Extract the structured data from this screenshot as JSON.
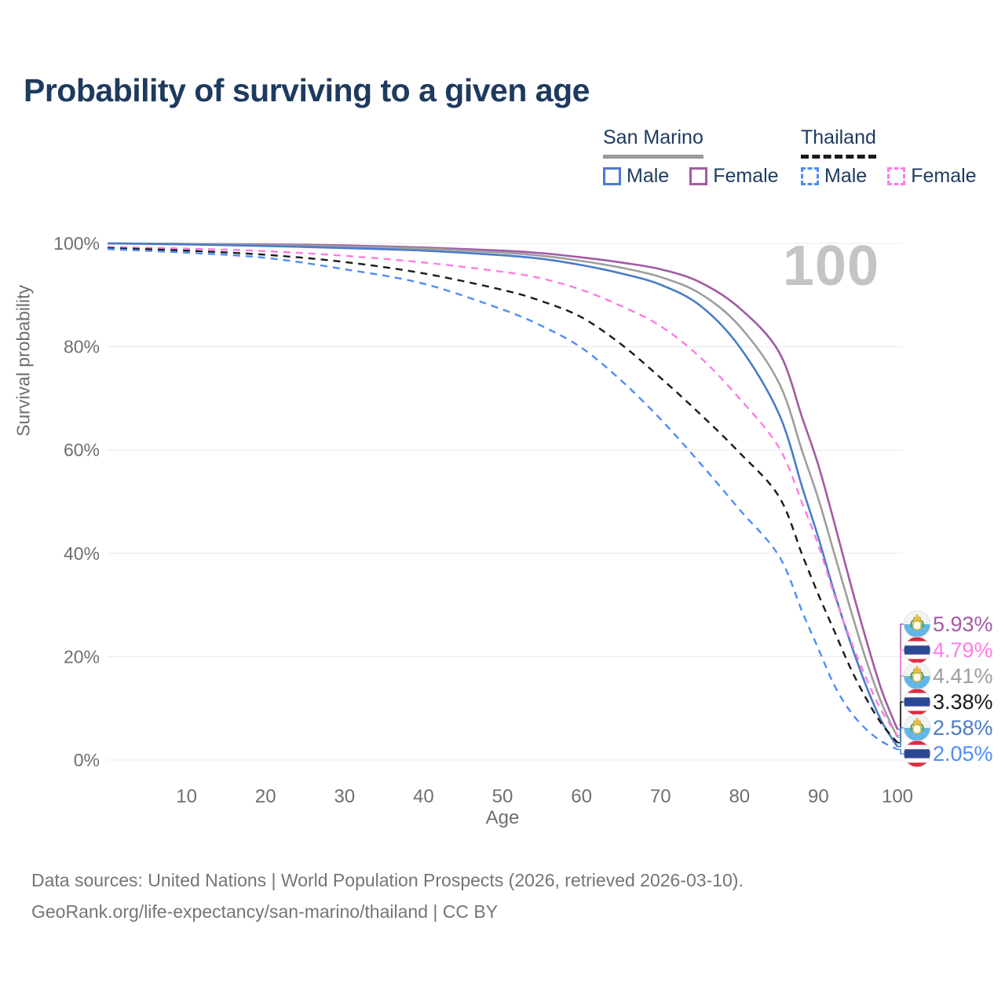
{
  "title": "Probability of surviving to a given age",
  "watermark_age": "100",
  "legend": {
    "groups": [
      {
        "name": "San Marino",
        "line_style": "solid",
        "underline_color": "#9a9a9a",
        "items": [
          {
            "label": "Male",
            "color": "#4a7cc7"
          },
          {
            "label": "Female",
            "color": "#a25aa5"
          }
        ]
      },
      {
        "name": "Thailand",
        "line_style": "dashed",
        "underline_color": "#1a1a1a",
        "items": [
          {
            "label": "Male",
            "color": "#4f8df5"
          },
          {
            "label": "Female",
            "color": "#ff7ce3"
          }
        ]
      }
    ]
  },
  "chart_data": {
    "type": "line",
    "title": "Probability of surviving to a given age",
    "xlabel": "Age",
    "ylabel": "Survival probability",
    "xlim": [
      0,
      100
    ],
    "ylim": [
      0,
      100
    ],
    "grid": true,
    "xticks": [
      10,
      20,
      30,
      40,
      50,
      60,
      70,
      80,
      90,
      100
    ],
    "ytick_values": [
      0,
      20,
      40,
      60,
      80,
      100
    ],
    "ytick_labels": [
      "0%",
      "20%",
      "40%",
      "60%",
      "80%",
      "100%"
    ],
    "x": [
      0,
      10,
      20,
      30,
      40,
      50,
      55,
      60,
      65,
      70,
      75,
      80,
      85,
      88,
      90,
      92,
      94,
      96,
      98,
      100
    ],
    "series": [
      {
        "name": "San Marino Female",
        "country": "san-marino",
        "sex": "female",
        "color": "#a25aa5",
        "dashed": false,
        "end_label": "5.93%",
        "values": [
          100,
          99.9,
          99.8,
          99.6,
          99.2,
          98.6,
          98.1,
          97.3,
          96.3,
          95.0,
          92.5,
          87.5,
          79.0,
          66.0,
          57.0,
          46.0,
          34.5,
          23.5,
          13.5,
          5.93
        ]
      },
      {
        "name": "San Marino Both sexes",
        "country": "san-marino",
        "sex": "both",
        "color": "#9e9e9e",
        "dashed": false,
        "end_label": "4.41%",
        "values": [
          100,
          99.9,
          99.7,
          99.4,
          99.0,
          98.2,
          97.6,
          96.6,
          95.3,
          93.5,
          90.3,
          84.0,
          73.0,
          59.5,
          50.5,
          40.0,
          29.5,
          19.5,
          11.0,
          4.41
        ]
      },
      {
        "name": "San Marino Male",
        "country": "san-marino",
        "sex": "male",
        "color": "#4a7cc7",
        "dashed": false,
        "end_label": "2.58%",
        "values": [
          100,
          99.8,
          99.5,
          99.1,
          98.6,
          97.7,
          97.0,
          95.8,
          94.2,
          92.0,
          88.0,
          80.0,
          67.0,
          52.5,
          43.0,
          32.5,
          23.0,
          14.5,
          7.5,
          2.58
        ]
      },
      {
        "name": "Thailand Female",
        "country": "thailand",
        "sex": "female",
        "color": "#ff7ce3",
        "dashed": true,
        "end_label": "4.79%",
        "values": [
          99.3,
          99.0,
          98.5,
          97.6,
          96.3,
          94.5,
          93.2,
          91.0,
          87.9,
          84.0,
          78.0,
          70.0,
          60.5,
          49.5,
          41.5,
          32.0,
          23.5,
          16.0,
          9.5,
          4.79
        ]
      },
      {
        "name": "Thailand Both sexes",
        "country": "thailand",
        "sex": "both",
        "color": "#1a1a1a",
        "dashed": true,
        "end_label": "3.38%",
        "values": [
          99.1,
          98.6,
          97.8,
          96.4,
          94.2,
          91.0,
          88.8,
          85.7,
          80.5,
          74.0,
          67.0,
          59.5,
          51.0,
          39.5,
          32.0,
          25.0,
          18.0,
          12.0,
          7.0,
          3.38
        ]
      },
      {
        "name": "Thailand Male",
        "country": "thailand",
        "sex": "male",
        "color": "#4f8df5",
        "dashed": true,
        "end_label": "2.05%",
        "values": [
          98.9,
          98.2,
          97.2,
          95.0,
          92.2,
          87.2,
          84.0,
          79.8,
          73.5,
          66.0,
          57.5,
          48.5,
          39.5,
          28.5,
          21.5,
          14.5,
          9.5,
          6.0,
          3.6,
          2.05
        ]
      }
    ],
    "annotation_age_counter": "100",
    "legend_position": "top-right"
  },
  "footer": {
    "line1": "Data sources: United Nations | World Population Prospects (2026, retrieved 2026-03-10).",
    "line2": "GeoRank.org/life-expectancy/san-marino/thailand | CC BY"
  }
}
